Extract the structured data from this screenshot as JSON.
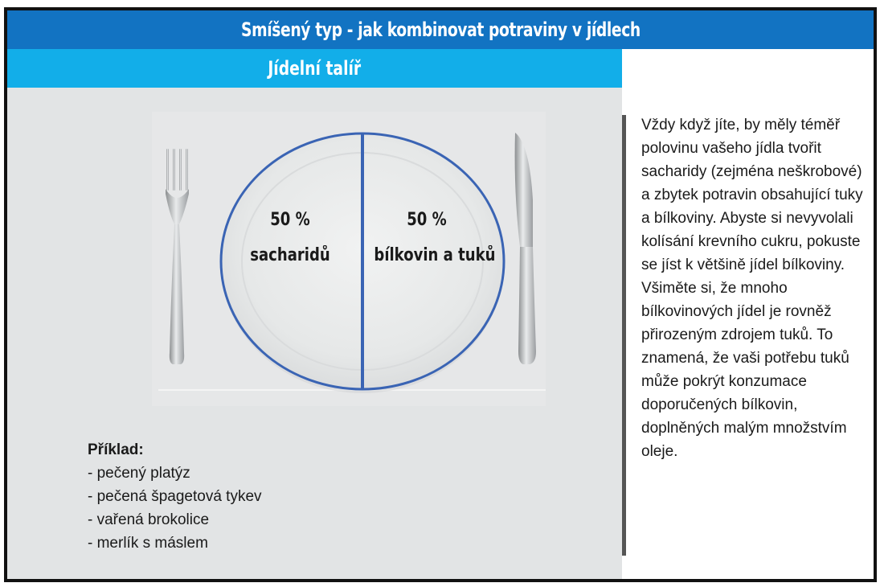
{
  "header": {
    "title": "Smíšený typ - jak kombinovat potraviny v jídlech"
  },
  "section": {
    "title": "Jídelní talíř"
  },
  "plate": {
    "left_percent": "50 %",
    "left_label": "sacharidů",
    "right_percent": "50 %",
    "right_label": "bílkovin a tuků"
  },
  "example": {
    "heading": "Příklad:",
    "items": [
      "- pečený platýz",
      "- pečená špagetová tykev",
      "- vařená brokolice",
      "- merlík s máslem"
    ]
  },
  "description": "Vždy když jíte, by měly téměř polovinu vašeho jídla tvořit sacharidy (zejména neškrobové) a zbytek potravin obsahující tuky a bílkoviny. Abyste si nevyvolali kolísání krevního cukru, pokuste se jíst k většině jídel bílkoviny. Všiměte si, že mnoho bílkovinových jídel je rovněž přirozeným zdrojem tuků. To znamená, že vaši potřebu tuků může pokrýt konzumace doporučených bílkovin, doplněných malým množstvím oleje.",
  "colors": {
    "title_bar": "#1273c2",
    "sub_bar": "#12aee9",
    "plate_divider": "#3a64b4",
    "panel_background": "#e2e4e5"
  }
}
